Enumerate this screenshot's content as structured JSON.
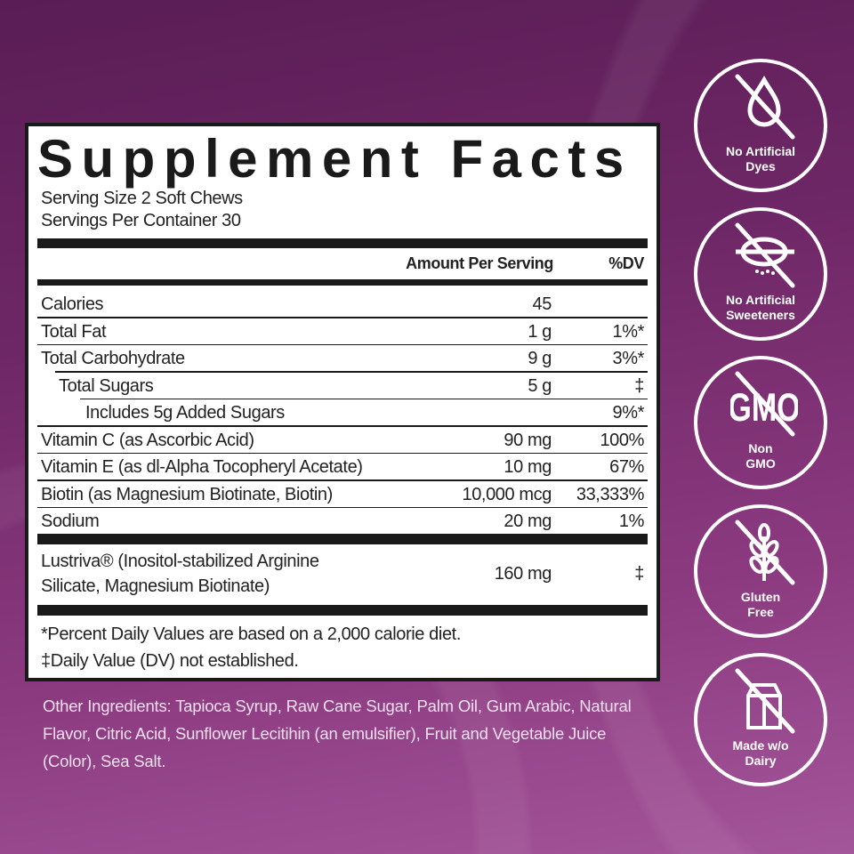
{
  "facts": {
    "title": "Supplement Facts",
    "serving_size": "Serving Size 2 Soft Chews",
    "servings_per_container": "Servings Per Container 30",
    "header_amount": "Amount Per Serving",
    "header_dv": "%DV",
    "rows": [
      {
        "name": "Calories",
        "amount": "45",
        "dv": ""
      },
      {
        "name": "Total Fat",
        "amount": "1 g",
        "dv": "1%*"
      },
      {
        "name": "Total Carbohydrate",
        "amount": "9 g",
        "dv": "3%*"
      },
      {
        "name": "Total Sugars",
        "amount": "5 g",
        "dv": "‡"
      },
      {
        "name": "Includes 5g Added Sugars",
        "amount": "",
        "dv": "9%*"
      },
      {
        "name": "Vitamin C (as Ascorbic Acid)",
        "amount": "90 mg",
        "dv": "100%"
      },
      {
        "name": "Vitamin E (as dl-Alpha Tocopheryl Acetate)",
        "amount": "10 mg",
        "dv": "67%"
      },
      {
        "name": "Biotin (as Magnesium Biotinate, Biotin)",
        "amount": "10,000 mcg",
        "dv": "33,333%"
      },
      {
        "name": "Sodium",
        "amount": "20 mg",
        "dv": "1%"
      }
    ],
    "blend": {
      "line1": "Lustriva® (Inositol-stabilized Arginine",
      "line2": "Silicate, Magnesium Biotinate)",
      "amount": "160 mg",
      "dv": "‡"
    },
    "footnote1": "*Percent Daily Values are based on a 2,000 calorie diet.",
    "footnote2": "‡Daily Value (DV) not established."
  },
  "other_ingredients": "Other Ingredients: Tapioca Syrup, Raw Cane Sugar, Palm Oil, Gum Arabic, Natural Flavor, Citric Acid, Sunflower Lecitihin (an emulsifier), Fruit and Vegetable Juice (Color), Sea Salt.",
  "badges": [
    {
      "icon": "no-drop-icon",
      "line1": "No Artificial",
      "line2": "Dyes"
    },
    {
      "icon": "no-sweetener-icon",
      "line1": "No Artificial",
      "line2": "Sweeteners"
    },
    {
      "icon": "no-gmo-icon",
      "text": "GMO",
      "line1": "Non",
      "line2": "GMO"
    },
    {
      "icon": "no-gluten-icon",
      "line1": "Gluten",
      "line2": "Free"
    },
    {
      "icon": "no-dairy-icon",
      "line1": "Made w/o",
      "line2": "Dairy"
    }
  ],
  "colors": {
    "background_top": "#5a1d55",
    "background_bottom": "#a4569a",
    "panel": "#ffffff",
    "ink": "#1a1a1a"
  }
}
